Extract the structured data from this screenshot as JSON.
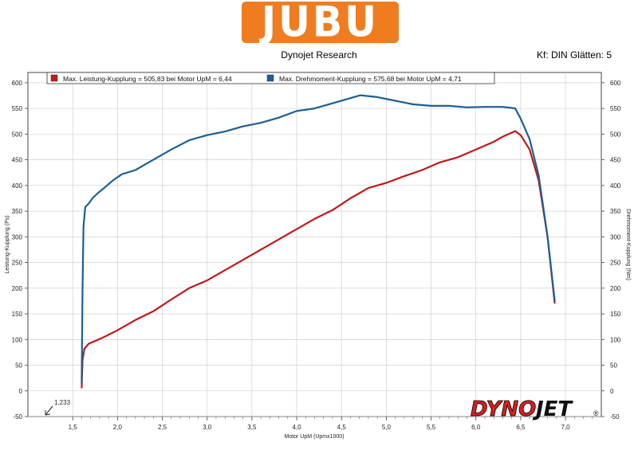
{
  "header": {
    "logo_text": "JUBU",
    "subtitle": "Dynojet Research",
    "settings": "Kf: DIN Glätten: 5"
  },
  "colors": {
    "logo": "#ef7d1f",
    "power": "#c0181c",
    "torque": "#1d5f95",
    "grid": "#c8c8c8"
  },
  "chart_data": {
    "type": "line",
    "xlabel": "Motor UpM (Upmx1000)",
    "ylabel_left": "Leistung-Kupplung (Ps)",
    "ylabel_right": "Drehmoment-Kupplung (Nm)",
    "xlim": [
      1.0,
      7.4
    ],
    "ylim": [
      -50,
      620
    ],
    "x_ticks": [
      "1,5",
      "2,0",
      "2,5",
      "3,0",
      "3,5",
      "4,0",
      "4,5",
      "5,0",
      "5,5",
      "6,0",
      "6,5",
      "7,0"
    ],
    "y_ticks": [
      "-50",
      "0",
      "50",
      "100",
      "150",
      "200",
      "250",
      "300",
      "350",
      "400",
      "450",
      "500",
      "550",
      "600"
    ],
    "grid": true,
    "start_marker": "1,233",
    "legend_position": "top-left",
    "series": [
      {
        "name": "Max. Leistung-Kupplung = 505,83 bei Motor UpM = 6,44",
        "axis": "left",
        "x": [
          1.6,
          1.61,
          1.63,
          1.68,
          1.75,
          1.85,
          2.0,
          2.2,
          2.4,
          2.6,
          2.8,
          3.0,
          3.2,
          3.4,
          3.6,
          3.8,
          4.0,
          4.2,
          4.4,
          4.6,
          4.8,
          5.0,
          5.2,
          5.4,
          5.6,
          5.8,
          6.0,
          6.2,
          6.3,
          6.44,
          6.5,
          6.6,
          6.7,
          6.8,
          6.88
        ],
        "y": [
          5,
          60,
          82,
          92,
          97,
          105,
          118,
          138,
          155,
          178,
          200,
          215,
          235,
          255,
          275,
          295,
          315,
          335,
          352,
          375,
          395,
          405,
          418,
          430,
          445,
          455,
          470,
          485,
          495,
          505.83,
          498,
          470,
          410,
          300,
          170
        ]
      },
      {
        "name": "Max. Drehmoment-Kupplung = 575,68 bei Motor UpM = 4,71",
        "axis": "right",
        "x": [
          1.6,
          1.61,
          1.62,
          1.64,
          1.68,
          1.72,
          1.78,
          1.85,
          1.95,
          2.05,
          2.2,
          2.4,
          2.6,
          2.8,
          3.0,
          3.2,
          3.4,
          3.6,
          3.8,
          4.0,
          4.2,
          4.4,
          4.6,
          4.71,
          4.9,
          5.1,
          5.3,
          5.5,
          5.7,
          5.9,
          6.1,
          6.3,
          6.44,
          6.5,
          6.6,
          6.7,
          6.8,
          6.88
        ],
        "y": [
          15,
          200,
          320,
          358,
          365,
          375,
          385,
          395,
          410,
          422,
          430,
          450,
          470,
          488,
          498,
          505,
          515,
          522,
          532,
          545,
          550,
          560,
          570,
          575.68,
          572,
          565,
          558,
          555,
          555,
          552,
          553,
          553,
          550,
          530,
          490,
          420,
          300,
          175
        ]
      }
    ]
  },
  "brand_left": "DYNO",
  "brand_right": "JET"
}
